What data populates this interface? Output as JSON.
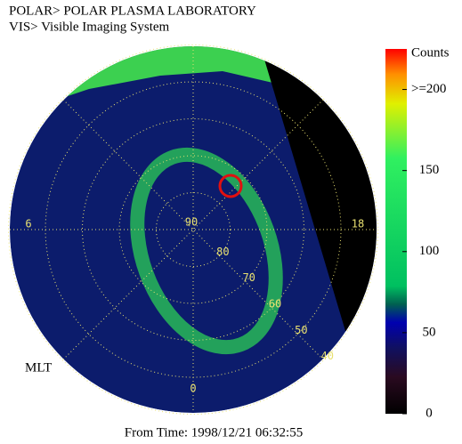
{
  "header": {
    "line1": "POLAR>  POLAR PLASMA LABORATORY",
    "line2": "VIS> Visible Imaging System"
  },
  "polar": {
    "lat_labels": [
      90,
      80,
      70,
      60,
      50,
      40
    ],
    "mlt_labels": [
      18,
      6,
      0
    ],
    "mlt_title": "MLT"
  },
  "colorbar": {
    "title": "Counts",
    "lim": [
      0,
      225
    ],
    "ticks": [
      0,
      50,
      100,
      150,
      {
        "value": 200,
        "label": ">=200"
      }
    ]
  },
  "footer": "From Time: 1998/12/21 06:32:55"
}
